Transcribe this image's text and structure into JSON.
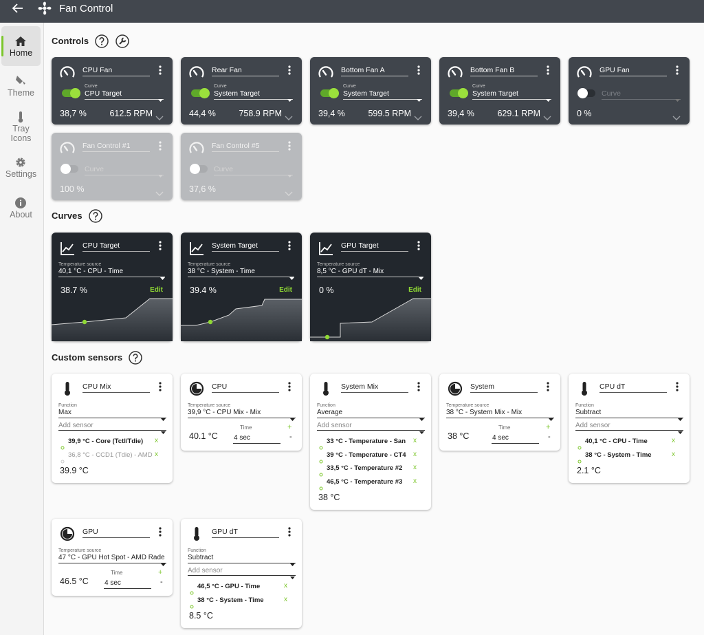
{
  "app": {
    "title": "Fan Control"
  },
  "nav": [
    {
      "label": "Home"
    },
    {
      "label": "Theme"
    },
    {
      "label": "Tray Icons"
    },
    {
      "label": "Settings"
    },
    {
      "label": "About"
    }
  ],
  "controls": {
    "title": "Controls",
    "cards": [
      {
        "name": "CPU Fan",
        "curve_label": "Curve",
        "curve": "CPU Target",
        "percent": "38,7 %",
        "rpm": "612.5 RPM",
        "toggle": true,
        "disabled": false
      },
      {
        "name": "Rear Fan",
        "curve_label": "Curve",
        "curve": "System Target",
        "percent": "44,4 %",
        "rpm": "758.9 RPM",
        "toggle": true,
        "disabled": false
      },
      {
        "name": "Bottom Fan A",
        "curve_label": "Curve",
        "curve": "System Target",
        "percent": "39,4 %",
        "rpm": "599.5 RPM",
        "toggle": true,
        "disabled": false
      },
      {
        "name": "Bottom Fan B",
        "curve_label": "Curve",
        "curve": "System Target",
        "percent": "39,4 %",
        "rpm": "629.1 RPM",
        "toggle": true,
        "disabled": false
      },
      {
        "name": "GPU Fan",
        "curve_placeholder": "Curve",
        "percent": "0 %",
        "toggle": false,
        "disabled": false
      },
      {
        "name": "Fan Control #1",
        "curve_placeholder": "Curve",
        "percent": "100 %",
        "toggle": false,
        "disabled": true
      },
      {
        "name": "Fan Control #5",
        "curve_placeholder": "Curve",
        "percent": "37,6 %",
        "toggle": false,
        "disabled": true
      }
    ]
  },
  "curves": {
    "title": "Curves",
    "cards": [
      {
        "name": "CPU Target",
        "source_label": "Temperature source",
        "source": "40,1 °C - CPU - Time",
        "value": "38.7 %",
        "edit": "Edit"
      },
      {
        "name": "System Target",
        "source_label": "Temperature source",
        "source": "38 °C - System - Time",
        "value": "39.4 %",
        "edit": "Edit"
      },
      {
        "name": "GPU Target",
        "source_label": "Temperature source",
        "source": "8,5 °C - GPU dT - Mix",
        "value": "0 %",
        "edit": "Edit"
      }
    ]
  },
  "sensors": {
    "title": "Custom sensors",
    "cards": [
      {
        "name": "CPU Mix",
        "function_label": "Function",
        "function": "Max",
        "add_sensor": "Add sensor",
        "items": [
          {
            "text": "39,9 °C - Core (Tctl/Tdie)",
            "remove": "x",
            "active": true
          },
          {
            "text": "36,8 °C - CCD1 (Tdie) - AMD",
            "remove": "x",
            "active": false
          }
        ],
        "result": "39.9 °C"
      },
      {
        "name": "CPU",
        "source_label": "Temperature source",
        "source": "39,9 °C - CPU Mix - Mix",
        "time_label": "Time",
        "time": "4 sec",
        "plus": "+",
        "minus": "-",
        "result": "40.1 °C"
      },
      {
        "name": "System Mix",
        "function_label": "Function",
        "function": "Average",
        "add_sensor": "Add sensor",
        "items": [
          {
            "text": "33 °C - Temperature - San",
            "remove": "x",
            "active": true
          },
          {
            "text": "39 °C - Temperature - CT4",
            "remove": "x",
            "active": true
          },
          {
            "text": "33,5 °C - Temperature #2",
            "remove": "x",
            "active": true
          },
          {
            "text": "46,5 °C - Temperature #3",
            "remove": "x",
            "active": true
          }
        ],
        "result": "38 °C"
      },
      {
        "name": "System",
        "source_label": "Temperature source",
        "source": "38 °C - System Mix - Mix",
        "time_label": "Time",
        "time": "4 sec",
        "plus": "+",
        "minus": "-",
        "result": "38 °C"
      },
      {
        "name": "CPU dT",
        "function_label": "Function",
        "function": "Subtract",
        "add_sensor": "Add sensor",
        "items": [
          {
            "text": "40,1 °C - CPU - Time",
            "remove": "x",
            "active": true
          },
          {
            "text": "38 °C - System - Time",
            "remove": "x",
            "active": true
          }
        ],
        "result": "2.1 °C"
      },
      {
        "name": "GPU",
        "source_label": "Temperature source",
        "source": "47 °C - GPU Hot Spot - AMD Rade",
        "time_label": "Time",
        "time": "4 sec",
        "plus": "+",
        "minus": "-",
        "result": "46.5 °C"
      },
      {
        "name": "GPU dT",
        "function_label": "Function",
        "function": "Subtract",
        "add_sensor": "Add sensor",
        "items": [
          {
            "text": "46,5 °C - GPU - Time",
            "remove": "x",
            "active": true
          },
          {
            "text": "38 °C - System - Time",
            "remove": "x",
            "active": true
          }
        ],
        "result": "8.5 °C"
      }
    ]
  }
}
